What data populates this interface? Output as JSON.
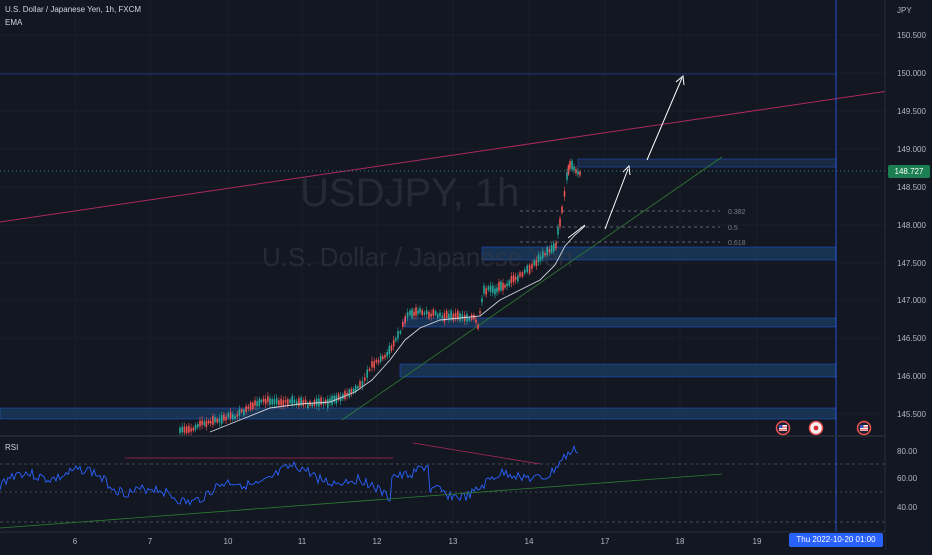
{
  "chart_header": {
    "title": "U.S. Dollar / Japanese Yen, 1h, FXCM",
    "indicator": "EMA"
  },
  "rsi_label": "RSI",
  "watermark": {
    "symbol": "USDJPY, 1h",
    "description": "U.S. Dollar / Japanese Yen"
  },
  "price_axis": {
    "currency": "JPY",
    "ticks": [
      "150.500",
      "150.000",
      "149.500",
      "149.000",
      "148.500",
      "148.000",
      "147.500",
      "147.000",
      "146.500",
      "146.000",
      "145.500"
    ],
    "current_price": "148.727"
  },
  "rsi_axis": {
    "ticks": [
      "80.00",
      "60.00",
      "40.00"
    ]
  },
  "time_axis": {
    "ticks": [
      "6",
      "7",
      "10",
      "11",
      "12",
      "13",
      "14",
      "17",
      "18",
      "19"
    ],
    "crosshair_label": "Thu 2022-10-20   01:00"
  },
  "fibonacci": {
    "levels": [
      "0.382",
      "0.5",
      "0.618"
    ]
  },
  "colors": {
    "background": "#131722",
    "up_candle": "#26a69a",
    "down_candle": "#ef5350",
    "ema": "#d1d4dc",
    "rsi_line": "#2962ff",
    "zone": "#1e4a7a",
    "resistance": "#ab2a5a",
    "support_trend": "#2e7d32",
    "price_tag": "#1b7f52",
    "crosshair": "#2962ff"
  },
  "events": {
    "icons": [
      "us-flag-icon",
      "jp-flag-icon",
      "us-flag-icon"
    ]
  }
}
